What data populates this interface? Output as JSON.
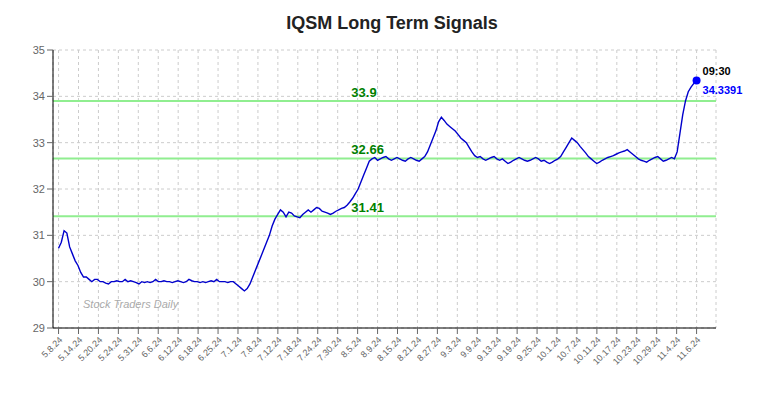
{
  "chart_data": {
    "type": "line",
    "title": "IQSM Long Term Signals",
    "watermark": "Stock Traders Daily",
    "grid": true,
    "xlim": [
      -2,
      237
    ],
    "xticks": [
      {
        "value": 0,
        "label": "5.8.24"
      },
      {
        "value": 7.1875,
        "label": "5.14.24"
      },
      {
        "value": 14.375,
        "label": "5.20.24"
      },
      {
        "value": 21.5625,
        "label": "5.24.24"
      },
      {
        "value": 28.75,
        "label": "5.31.24"
      },
      {
        "value": 35.9375,
        "label": "6.6.24"
      },
      {
        "value": 43.125,
        "label": "6.12.24"
      },
      {
        "value": 50.3125,
        "label": "6.18.24"
      },
      {
        "value": 57.5,
        "label": "6.25.24"
      },
      {
        "value": 64.6875,
        "label": "7.1.24"
      },
      {
        "value": 71.875,
        "label": "7.8.24"
      },
      {
        "value": 79.0625,
        "label": "7.12.24"
      },
      {
        "value": 86.25,
        "label": "7.18.24"
      },
      {
        "value": 93.4375,
        "label": "7.24.24"
      },
      {
        "value": 100.625,
        "label": "7.30.24"
      },
      {
        "value": 107.8125,
        "label": "8.5.24"
      },
      {
        "value": 115,
        "label": "8.9.24"
      },
      {
        "value": 122.1875,
        "label": "8.15.24"
      },
      {
        "value": 129.375,
        "label": "8.21.24"
      },
      {
        "value": 136.5625,
        "label": "8.27.24"
      },
      {
        "value": 143.75,
        "label": "9.3.24"
      },
      {
        "value": 150.9375,
        "label": "9.9.24"
      },
      {
        "value": 158.125,
        "label": "9.13.24"
      },
      {
        "value": 165.3125,
        "label": "9.19.24"
      },
      {
        "value": 172.5,
        "label": "9.25.24"
      },
      {
        "value": 179.6875,
        "label": "10.1.24"
      },
      {
        "value": 186.875,
        "label": "10.7.24"
      },
      {
        "value": 194.0625,
        "label": "10.11.24"
      },
      {
        "value": 201.25,
        "label": "10.17.24"
      },
      {
        "value": 208.4375,
        "label": "10.23.24"
      },
      {
        "value": 215.625,
        "label": "10.29.24"
      },
      {
        "value": 222.8125,
        "label": "11.4.24"
      },
      {
        "value": 230,
        "label": "11.6.24"
      }
    ],
    "ylim": [
      29,
      35
    ],
    "yticks": [
      29,
      30,
      31,
      32,
      33,
      34,
      35
    ],
    "hlines": [
      {
        "value": 31.41,
        "label": "31.41"
      },
      {
        "value": 32.66,
        "label": "32.66"
      },
      {
        "value": 33.9,
        "label": "33.9"
      }
    ],
    "hline_color": "#90EE90",
    "hline_label_color": "#008000",
    "last_point": {
      "time": "09:30",
      "label": "34.3391",
      "color": "blue"
    },
    "color": "#0000CC",
    "x": [
      0,
      1,
      2,
      3,
      4,
      5,
      6,
      7,
      8,
      9,
      10,
      11,
      12,
      13,
      14,
      15,
      16,
      17,
      18,
      19,
      20,
      21,
      22,
      23,
      24,
      25,
      26,
      27,
      28,
      29,
      30,
      31,
      32,
      33,
      34,
      35,
      36,
      37,
      38,
      39,
      40,
      41,
      42,
      43,
      44,
      45,
      46,
      47,
      48,
      49,
      50,
      51,
      52,
      53,
      54,
      55,
      56,
      57,
      58,
      59,
      60,
      61,
      62,
      63,
      64,
      65,
      66,
      67,
      68,
      69,
      70,
      71,
      72,
      73,
      74,
      75,
      76,
      77,
      78,
      79,
      80,
      81,
      82,
      83,
      84,
      85,
      86,
      87,
      88,
      89,
      90,
      91,
      92,
      93,
      94,
      95,
      96,
      97,
      98,
      99,
      100,
      101,
      102,
      103,
      104,
      105,
      106,
      107,
      108,
      109,
      110,
      111,
      112,
      113,
      114,
      115,
      116,
      117,
      118,
      119,
      120,
      121,
      122,
      123,
      124,
      125,
      126,
      127,
      128,
      129,
      130,
      131,
      132,
      133,
      134,
      135,
      136,
      137,
      138,
      139,
      140,
      141,
      142,
      143,
      144,
      145,
      146,
      147,
      148,
      149,
      150,
      151,
      152,
      153,
      154,
      155,
      156,
      157,
      158,
      159,
      160,
      161,
      162,
      163,
      164,
      165,
      166,
      167,
      168,
      169,
      170,
      171,
      172,
      173,
      174,
      175,
      176,
      177,
      178,
      179,
      180,
      181,
      182,
      183,
      184,
      185,
      186,
      187,
      188,
      189,
      190,
      191,
      192,
      193,
      194,
      195,
      196,
      197,
      198,
      199,
      200,
      201,
      202,
      203,
      204,
      205,
      206,
      207,
      208,
      209,
      210,
      211,
      212,
      213,
      214,
      215,
      216,
      217,
      218,
      219,
      220,
      221,
      222,
      223,
      224,
      225,
      226,
      227,
      228,
      229,
      230
    ],
    "values": [
      30.72,
      30.85,
      31.1,
      31.05,
      30.75,
      30.6,
      30.45,
      30.35,
      30.2,
      30.1,
      30.1,
      30.05,
      30.0,
      30.05,
      30.05,
      30.0,
      30.0,
      29.97,
      29.95,
      30.0,
      30.0,
      30.02,
      30.0,
      30.0,
      30.05,
      30.0,
      30.02,
      30.0,
      29.98,
      29.95,
      30.0,
      29.98,
      30.0,
      29.98,
      30.0,
      30.05,
      30.0,
      30.0,
      30.02,
      30.0,
      30.0,
      29.98,
      30.0,
      30.02,
      30.0,
      29.98,
      30.0,
      30.05,
      30.02,
      30.0,
      30.0,
      29.98,
      30.0,
      29.98,
      30.0,
      30.02,
      30.0,
      30.05,
      30.0,
      30.0,
      30.0,
      29.98,
      30.0,
      30.0,
      29.95,
      29.9,
      29.85,
      29.8,
      29.85,
      29.95,
      30.1,
      30.25,
      30.4,
      30.55,
      30.7,
      30.85,
      31.0,
      31.2,
      31.35,
      31.45,
      31.55,
      31.5,
      31.4,
      31.5,
      31.48,
      31.42,
      31.4,
      31.38,
      31.45,
      31.5,
      31.55,
      31.5,
      31.55,
      31.6,
      31.58,
      31.52,
      31.5,
      31.48,
      31.45,
      31.48,
      31.52,
      31.55,
      31.58,
      31.6,
      31.65,
      31.72,
      31.8,
      31.9,
      32.0,
      32.15,
      32.3,
      32.45,
      32.6,
      32.65,
      32.68,
      32.62,
      32.65,
      32.68,
      32.7,
      32.65,
      32.62,
      32.65,
      32.68,
      32.65,
      32.62,
      32.6,
      32.65,
      32.68,
      32.65,
      32.62,
      32.6,
      32.65,
      32.7,
      32.8,
      32.95,
      33.1,
      33.25,
      33.45,
      33.55,
      33.48,
      33.4,
      33.35,
      33.3,
      33.25,
      33.18,
      33.1,
      33.05,
      33.0,
      32.9,
      32.8,
      32.72,
      32.68,
      32.7,
      32.65,
      32.62,
      32.65,
      32.68,
      32.7,
      32.65,
      32.62,
      32.65,
      32.6,
      32.55,
      32.58,
      32.62,
      32.65,
      32.68,
      32.65,
      32.62,
      32.6,
      32.62,
      32.65,
      32.68,
      32.65,
      32.6,
      32.62,
      32.58,
      32.55,
      32.58,
      32.62,
      32.65,
      32.7,
      32.8,
      32.9,
      33.0,
      33.1,
      33.05,
      33.0,
      32.92,
      32.85,
      32.78,
      32.7,
      32.65,
      32.6,
      32.55,
      32.58,
      32.62,
      32.65,
      32.68,
      32.7,
      32.72,
      32.75,
      32.78,
      32.8,
      32.82,
      32.85,
      32.8,
      32.75,
      32.7,
      32.65,
      32.62,
      32.6,
      32.58,
      32.62,
      32.65,
      32.68,
      32.7,
      32.65,
      32.6,
      32.62,
      32.65,
      32.68,
      32.65,
      32.8,
      33.2,
      33.6,
      33.9,
      34.1,
      34.2,
      34.28,
      34.3391
    ]
  }
}
